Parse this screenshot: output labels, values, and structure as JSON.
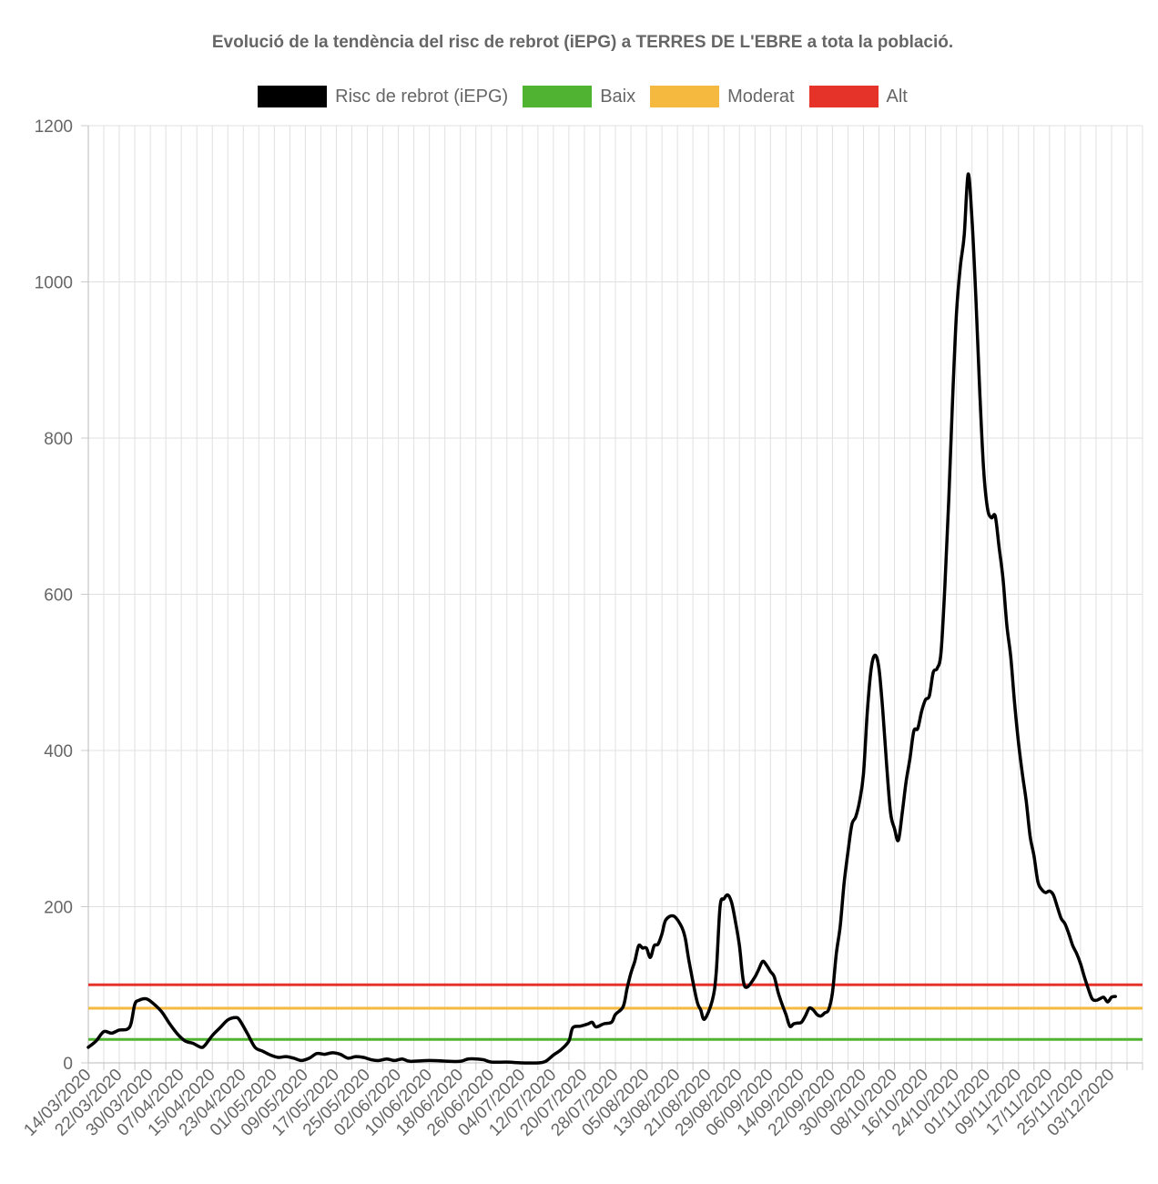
{
  "chart_data": {
    "type": "line",
    "title": "Evolució de la tendència del risc de rebrot (iEPG) a TERRES DE L'EBRE a tota la població.",
    "xlabel": "",
    "ylabel": "",
    "ylim": [
      0,
      1200
    ],
    "y_ticks": [
      "0",
      "200",
      "400",
      "600",
      "800",
      "1000",
      "1200"
    ],
    "grid": true,
    "legend_position": "top",
    "x_start": "14/03/2020",
    "x_end": "11/12/2020",
    "x_tick_labels": [
      "14/03/2020",
      "22/03/2020",
      "30/03/2020",
      "07/04/2020",
      "15/04/2020",
      "23/04/2020",
      "01/05/2020",
      "09/05/2020",
      "17/05/2020",
      "25/05/2020",
      "02/06/2020",
      "10/06/2020",
      "18/06/2020",
      "26/06/2020",
      "04/07/2020",
      "12/07/2020",
      "20/07/2020",
      "28/07/2020",
      "05/08/2020",
      "13/08/2020",
      "21/08/2020",
      "29/08/2020",
      "06/09/2020",
      "14/09/2020",
      "22/09/2020",
      "30/09/2020",
      "08/10/2020",
      "16/10/2020",
      "24/10/2020",
      "01/11/2020",
      "09/11/2020",
      "17/11/2020",
      "25/11/2020",
      "03/12/2020"
    ],
    "series": [
      {
        "name": "Risc de rebrot (iEPG)",
        "color": "#000000",
        "points": [
          [
            "14/03/2020",
            20
          ],
          [
            "16/03/2020",
            28
          ],
          [
            "18/03/2020",
            40
          ],
          [
            "20/03/2020",
            38
          ],
          [
            "22/03/2020",
            42
          ],
          [
            "24/03/2020",
            43
          ],
          [
            "25/03/2020",
            50
          ],
          [
            "26/03/2020",
            75
          ],
          [
            "27/03/2020",
            80
          ],
          [
            "29/03/2020",
            82
          ],
          [
            "31/03/2020",
            75
          ],
          [
            "02/04/2020",
            65
          ],
          [
            "04/04/2020",
            50
          ],
          [
            "06/04/2020",
            37
          ],
          [
            "08/04/2020",
            28
          ],
          [
            "10/04/2020",
            25
          ],
          [
            "12/04/2020",
            20
          ],
          [
            "13/04/2020",
            22
          ],
          [
            "15/04/2020",
            35
          ],
          [
            "17/04/2020",
            45
          ],
          [
            "19/04/2020",
            55
          ],
          [
            "21/04/2020",
            58
          ],
          [
            "22/04/2020",
            55
          ],
          [
            "24/04/2020",
            38
          ],
          [
            "26/04/2020",
            20
          ],
          [
            "28/04/2020",
            15
          ],
          [
            "30/04/2020",
            10
          ],
          [
            "02/05/2020",
            7
          ],
          [
            "04/05/2020",
            8
          ],
          [
            "06/05/2020",
            6
          ],
          [
            "08/05/2020",
            3
          ],
          [
            "10/05/2020",
            6
          ],
          [
            "12/05/2020",
            12
          ],
          [
            "14/05/2020",
            11
          ],
          [
            "16/05/2020",
            13
          ],
          [
            "18/05/2020",
            11
          ],
          [
            "20/05/2020",
            6
          ],
          [
            "22/05/2020",
            8
          ],
          [
            "24/05/2020",
            7
          ],
          [
            "26/05/2020",
            4
          ],
          [
            "28/05/2020",
            3
          ],
          [
            "30/05/2020",
            5
          ],
          [
            "01/06/2020",
            3
          ],
          [
            "03/06/2020",
            5
          ],
          [
            "05/06/2020",
            2
          ],
          [
            "10/06/2020",
            3
          ],
          [
            "15/06/2020",
            2
          ],
          [
            "18/06/2020",
            2
          ],
          [
            "20/06/2020",
            5
          ],
          [
            "22/06/2020",
            5
          ],
          [
            "24/06/2020",
            4
          ],
          [
            "26/06/2020",
            1
          ],
          [
            "30/06/2020",
            1
          ],
          [
            "04/07/2020",
            0
          ],
          [
            "08/07/2020",
            0
          ],
          [
            "10/07/2020",
            2
          ],
          [
            "12/07/2020",
            10
          ],
          [
            "14/07/2020",
            17
          ],
          [
            "16/07/2020",
            28
          ],
          [
            "17/07/2020",
            45
          ],
          [
            "19/07/2020",
            47
          ],
          [
            "21/07/2020",
            50
          ],
          [
            "22/07/2020",
            52
          ],
          [
            "23/07/2020",
            46
          ],
          [
            "25/07/2020",
            50
          ],
          [
            "27/07/2020",
            52
          ],
          [
            "28/07/2020",
            62
          ],
          [
            "30/07/2020",
            72
          ],
          [
            "31/07/2020",
            95
          ],
          [
            "01/08/2020",
            115
          ],
          [
            "02/08/2020",
            130
          ],
          [
            "03/08/2020",
            150
          ],
          [
            "04/08/2020",
            147
          ],
          [
            "05/08/2020",
            147
          ],
          [
            "06/08/2020",
            135
          ],
          [
            "07/08/2020",
            150
          ],
          [
            "08/08/2020",
            152
          ],
          [
            "09/08/2020",
            165
          ],
          [
            "10/08/2020",
            183
          ],
          [
            "12/08/2020",
            188
          ],
          [
            "14/08/2020",
            175
          ],
          [
            "15/08/2020",
            160
          ],
          [
            "16/08/2020",
            130
          ],
          [
            "18/08/2020",
            80
          ],
          [
            "19/08/2020",
            68
          ],
          [
            "20/08/2020",
            56
          ],
          [
            "22/08/2020",
            80
          ],
          [
            "23/08/2020",
            115
          ],
          [
            "24/08/2020",
            200
          ],
          [
            "25/08/2020",
            210
          ],
          [
            "26/08/2020",
            215
          ],
          [
            "27/08/2020",
            205
          ],
          [
            "28/08/2020",
            180
          ],
          [
            "29/08/2020",
            150
          ],
          [
            "30/08/2020",
            105
          ],
          [
            "31/08/2020",
            97
          ],
          [
            "02/09/2020",
            110
          ],
          [
            "03/09/2020",
            120
          ],
          [
            "04/09/2020",
            130
          ],
          [
            "05/09/2020",
            125
          ],
          [
            "06/09/2020",
            117
          ],
          [
            "07/09/2020",
            110
          ],
          [
            "08/09/2020",
            90
          ],
          [
            "09/09/2020",
            75
          ],
          [
            "10/09/2020",
            62
          ],
          [
            "11/09/2020",
            47
          ],
          [
            "12/09/2020",
            50
          ],
          [
            "13/09/2020",
            51
          ],
          [
            "14/09/2020",
            52
          ],
          [
            "15/09/2020",
            60
          ],
          [
            "16/09/2020",
            70
          ],
          [
            "17/09/2020",
            68
          ],
          [
            "18/09/2020",
            62
          ],
          [
            "19/09/2020",
            60
          ],
          [
            "20/09/2020",
            64
          ],
          [
            "21/09/2020",
            68
          ],
          [
            "22/09/2020",
            90
          ],
          [
            "23/09/2020",
            140
          ],
          [
            "24/09/2020",
            175
          ],
          [
            "25/09/2020",
            230
          ],
          [
            "26/09/2020",
            270
          ],
          [
            "27/09/2020",
            305
          ],
          [
            "28/09/2020",
            315
          ],
          [
            "29/09/2020",
            335
          ],
          [
            "30/09/2020",
            370
          ],
          [
            "01/10/2020",
            450
          ],
          [
            "02/10/2020",
            505
          ],
          [
            "03/10/2020",
            522
          ],
          [
            "04/10/2020",
            505
          ],
          [
            "05/10/2020",
            450
          ],
          [
            "06/10/2020",
            380
          ],
          [
            "07/10/2020",
            320
          ],
          [
            "08/10/2020",
            300
          ],
          [
            "09/10/2020",
            285
          ],
          [
            "10/10/2020",
            320
          ],
          [
            "11/10/2020",
            360
          ],
          [
            "12/10/2020",
            390
          ],
          [
            "13/10/2020",
            425
          ],
          [
            "14/10/2020",
            428
          ],
          [
            "15/10/2020",
            450
          ],
          [
            "16/10/2020",
            465
          ],
          [
            "17/10/2020",
            470
          ],
          [
            "18/10/2020",
            500
          ],
          [
            "19/10/2020",
            505
          ],
          [
            "20/10/2020",
            525
          ],
          [
            "21/10/2020",
            610
          ],
          [
            "22/10/2020",
            720
          ],
          [
            "23/10/2020",
            850
          ],
          [
            "24/10/2020",
            960
          ],
          [
            "25/10/2020",
            1020
          ],
          [
            "26/10/2020",
            1060
          ],
          [
            "27/10/2020",
            1138
          ],
          [
            "28/10/2020",
            1080
          ],
          [
            "29/10/2020",
            980
          ],
          [
            "30/10/2020",
            860
          ],
          [
            "31/10/2020",
            760
          ],
          [
            "01/11/2020",
            710
          ],
          [
            "02/11/2020",
            698
          ],
          [
            "03/11/2020",
            700
          ],
          [
            "04/11/2020",
            660
          ],
          [
            "05/11/2020",
            620
          ],
          [
            "06/11/2020",
            560
          ],
          [
            "07/11/2020",
            520
          ],
          [
            "08/11/2020",
            460
          ],
          [
            "09/11/2020",
            410
          ],
          [
            "10/11/2020",
            370
          ],
          [
            "11/11/2020",
            335
          ],
          [
            "12/11/2020",
            290
          ],
          [
            "13/11/2020",
            265
          ],
          [
            "14/11/2020",
            232
          ],
          [
            "15/11/2020",
            222
          ],
          [
            "16/11/2020",
            218
          ],
          [
            "17/11/2020",
            220
          ],
          [
            "18/11/2020",
            215
          ],
          [
            "19/11/2020",
            200
          ],
          [
            "20/11/2020",
            185
          ],
          [
            "21/11/2020",
            178
          ],
          [
            "22/11/2020",
            165
          ],
          [
            "23/11/2020",
            150
          ],
          [
            "24/11/2020",
            140
          ],
          [
            "25/11/2020",
            127
          ],
          [
            "26/11/2020",
            110
          ],
          [
            "27/11/2020",
            95
          ],
          [
            "28/11/2020",
            82
          ],
          [
            "29/11/2020",
            80
          ],
          [
            "30/11/2020",
            82
          ],
          [
            "01/12/2020",
            84
          ],
          [
            "02/12/2020",
            78
          ],
          [
            "03/12/2020",
            84
          ],
          [
            "04/12/2020",
            85
          ]
        ]
      },
      {
        "name": "Baix",
        "color": "#50b432",
        "value": 30
      },
      {
        "name": "Moderat",
        "color": "#f5b940",
        "value": 70
      },
      {
        "name": "Alt",
        "color": "#e5332a",
        "value": 100
      }
    ]
  }
}
